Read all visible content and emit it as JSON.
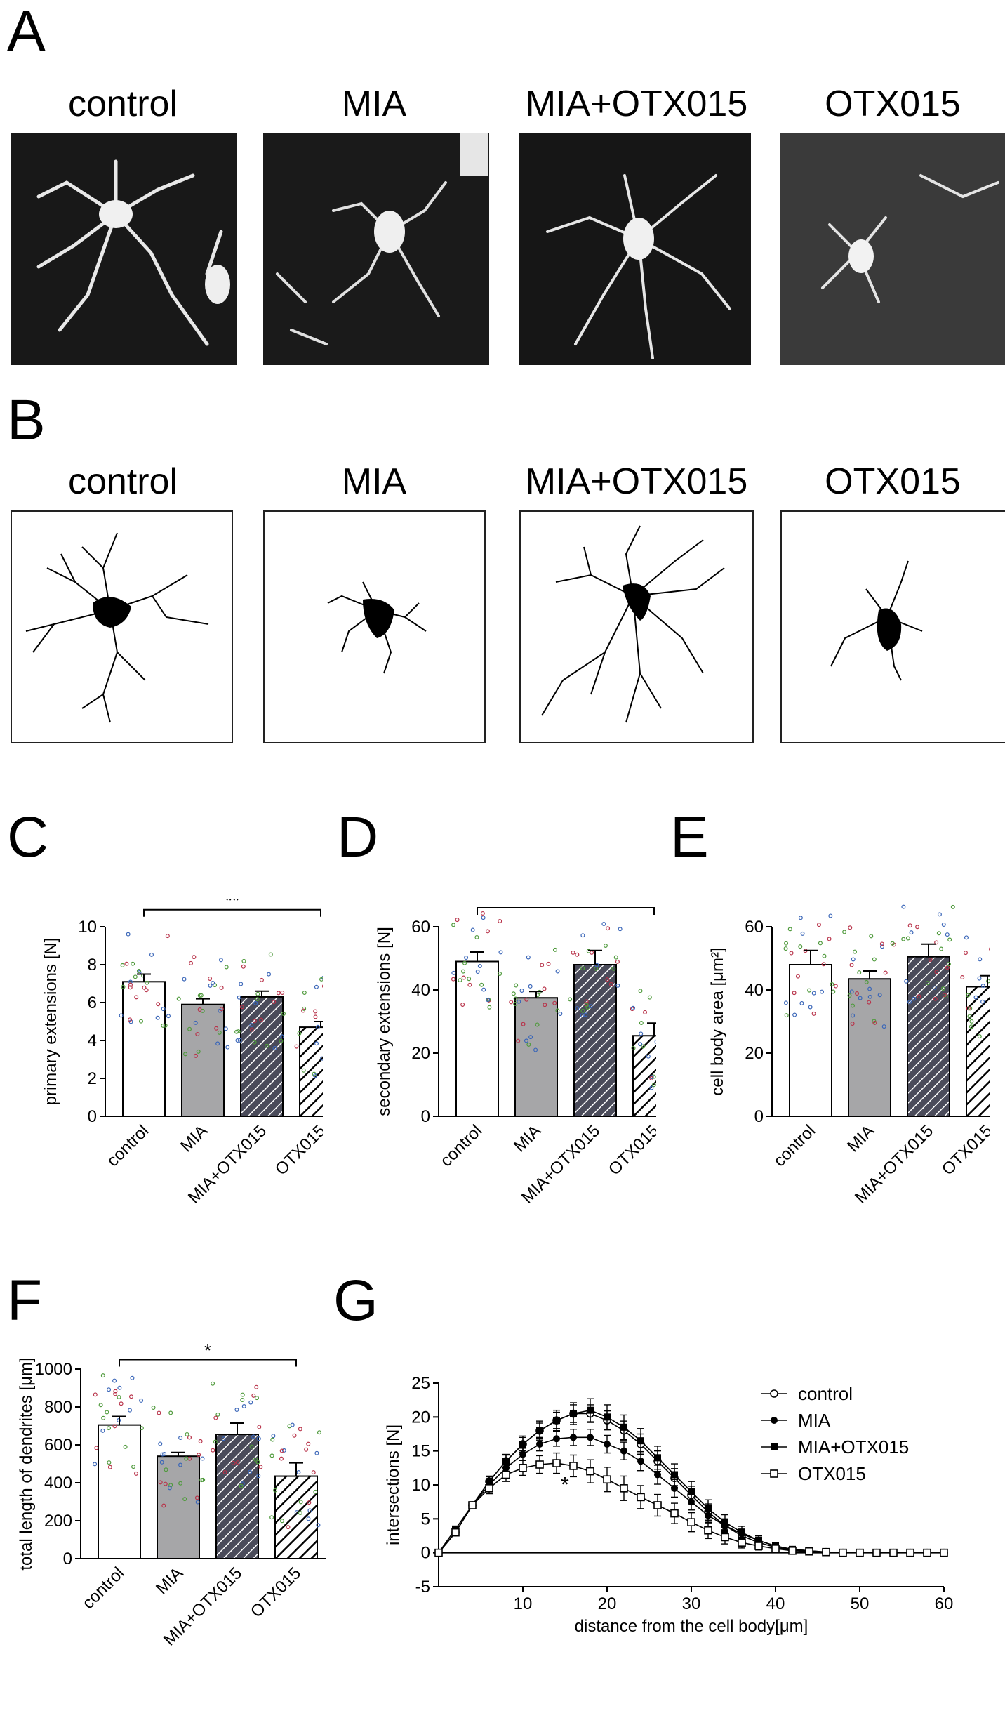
{
  "panels": {
    "A": {
      "letter": "A",
      "titles": [
        "control",
        "MIA",
        "MIA+OTX015",
        "OTX015"
      ]
    },
    "B": {
      "letter": "B",
      "titles": [
        "control",
        "MIA",
        "MIA+OTX015",
        "OTX015"
      ]
    },
    "C": {
      "letter": "C"
    },
    "D": {
      "letter": "D"
    },
    "E": {
      "letter": "E"
    },
    "F": {
      "letter": "F"
    },
    "G": {
      "letter": "G"
    }
  },
  "colors": {
    "bar_gray": "#a6a6a8",
    "bar_hatch": "#4a4b5a",
    "dot_green": "#4f9a3c",
    "dot_blue": "#3a66b8",
    "dot_red": "#b8334a"
  },
  "chart_data": [
    {
      "id": "C",
      "type": "bar",
      "categories": [
        "control",
        "MIA",
        "MIA+OTX015",
        "OTX015"
      ],
      "values": [
        7.1,
        5.9,
        6.3,
        4.7
      ],
      "errors": [
        0.4,
        0.3,
        0.3,
        0.3
      ],
      "ylabel": "primary extensions [N]",
      "ylim": [
        0,
        10
      ],
      "yticks": [
        0,
        2,
        4,
        6,
        8,
        10
      ],
      "significance": {
        "label": "**",
        "from": 0,
        "to": 3,
        "y": 10.9
      },
      "bar_styles": [
        "white",
        "gray",
        "hatch-dark",
        "hatch-white"
      ]
    },
    {
      "id": "D",
      "type": "bar",
      "categories": [
        "control",
        "MIA",
        "MIA+OTX015",
        "OTX015"
      ],
      "values": [
        49,
        37.5,
        48,
        25.5
      ],
      "errors": [
        3,
        2,
        4.5,
        4
      ],
      "ylabel": "secondary extensions [N]",
      "ylim": [
        0,
        60
      ],
      "yticks": [
        0,
        20,
        40,
        60
      ],
      "significance": {
        "label": "**",
        "from": 0,
        "to": 3,
        "y": 66
      },
      "bar_styles": [
        "white",
        "gray",
        "hatch-dark",
        "hatch-white"
      ]
    },
    {
      "id": "E",
      "type": "bar",
      "categories": [
        "control",
        "MIA",
        "MIA+OTX015",
        "OTX015"
      ],
      "values": [
        48,
        43.5,
        50.5,
        41
      ],
      "errors": [
        4.5,
        2.5,
        4,
        3.5
      ],
      "ylabel": "cell body area [μm²]",
      "ylim": [
        0,
        60
      ],
      "yticks": [
        0,
        20,
        40,
        60
      ],
      "bar_styles": [
        "white",
        "gray",
        "hatch-dark",
        "hatch-white"
      ]
    },
    {
      "id": "F",
      "type": "bar",
      "categories": [
        "control",
        "MIA",
        "MIA+OTX015",
        "OTX015"
      ],
      "values": [
        705,
        540,
        655,
        435
      ],
      "errors": [
        45,
        20,
        60,
        70
      ],
      "ylabel": "total length of dendrites [μm]",
      "ylim": [
        0,
        1000
      ],
      "yticks": [
        0,
        200,
        400,
        600,
        800,
        1000
      ],
      "significance": {
        "label": "*",
        "from": 0,
        "to": 3,
        "y": 1050
      },
      "bar_styles": [
        "white",
        "gray",
        "hatch-dark",
        "hatch-white"
      ]
    },
    {
      "id": "G",
      "type": "line",
      "xlabel": "distance from the cell body[μm]",
      "ylabel": "intersections [N]",
      "xlim": [
        0,
        60
      ],
      "ylim": [
        -5,
        25
      ],
      "xticks": [
        10,
        20,
        30,
        40,
        50,
        60
      ],
      "yticks": [
        -5,
        0,
        5,
        10,
        15,
        20,
        25
      ],
      "x": [
        0,
        2,
        4,
        6,
        8,
        10,
        12,
        14,
        16,
        18,
        20,
        22,
        24,
        26,
        28,
        30,
        32,
        34,
        36,
        38,
        40,
        42,
        44,
        46,
        48,
        50,
        52,
        54,
        56,
        58,
        60
      ],
      "series": [
        {
          "name": "control",
          "marker": "open-circle",
          "values": [
            0,
            3,
            7,
            10.5,
            13.5,
            16,
            18,
            19.5,
            20.5,
            20.5,
            19.5,
            18,
            16,
            13.5,
            11,
            8.5,
            6,
            4,
            2.5,
            1.5,
            0.8,
            0.4,
            0.2,
            0.1,
            0,
            0,
            0,
            0,
            0,
            0,
            0
          ],
          "errors": [
            0,
            0.3,
            0.5,
            0.7,
            0.9,
            1,
            1.1,
            1.2,
            1.3,
            1.3,
            1.4,
            1.4,
            1.5,
            1.5,
            1.4,
            1.3,
            1.2,
            1,
            0.8,
            0.6,
            0.4,
            0.3,
            0.2,
            0.1,
            0,
            0,
            0,
            0,
            0,
            0,
            0
          ]
        },
        {
          "name": "MIA",
          "marker": "filled-circle",
          "values": [
            0,
            3,
            7,
            10,
            12.5,
            14.5,
            16,
            16.8,
            17,
            17,
            16,
            15,
            13.5,
            11.5,
            9.5,
            7.5,
            5.5,
            4,
            2.8,
            1.8,
            1,
            0.5,
            0.3,
            0.1,
            0,
            0,
            0,
            0,
            0,
            0,
            0
          ],
          "errors": [
            0,
            0.3,
            0.5,
            0.7,
            0.8,
            0.9,
            1,
            1.1,
            1.2,
            1.2,
            1.3,
            1.3,
            1.4,
            1.4,
            1.3,
            1.2,
            1.1,
            0.9,
            0.7,
            0.5,
            0.4,
            0.3,
            0.2,
            0.1,
            0,
            0,
            0,
            0,
            0,
            0,
            0
          ]
        },
        {
          "name": "MIA+OTX015",
          "marker": "filled-square",
          "values": [
            0,
            3.5,
            7,
            10.5,
            13.5,
            16,
            18,
            19.5,
            20.5,
            21,
            20,
            18.5,
            16.5,
            14,
            11.5,
            9,
            6.5,
            4.5,
            3,
            1.8,
            1,
            0.5,
            0.3,
            0.1,
            0,
            0,
            0,
            0,
            0,
            0,
            0
          ],
          "errors": [
            0,
            0.3,
            0.5,
            0.8,
            1,
            1.2,
            1.4,
            1.5,
            1.6,
            1.7,
            1.8,
            1.8,
            1.8,
            1.7,
            1.6,
            1.5,
            1.3,
            1.1,
            0.9,
            0.7,
            0.5,
            0.3,
            0.2,
            0.1,
            0,
            0,
            0,
            0,
            0,
            0,
            0
          ]
        },
        {
          "name": "OTX015",
          "marker": "open-square",
          "values": [
            0,
            3,
            7,
            9.5,
            11.5,
            12.5,
            13,
            13.2,
            12.8,
            12,
            10.8,
            9.5,
            8.2,
            7,
            5.8,
            4.5,
            3.3,
            2.3,
            1.5,
            1,
            0.6,
            0.3,
            0.2,
            0.1,
            0,
            0,
            0,
            0,
            0,
            0,
            0
          ],
          "errors": [
            0,
            0.3,
            0.5,
            0.8,
            1,
            1.1,
            1.3,
            1.5,
            1.6,
            1.7,
            1.8,
            1.8,
            1.7,
            1.6,
            1.5,
            1.4,
            1.2,
            1,
            0.8,
            0.6,
            0.4,
            0.3,
            0.2,
            0.1,
            0,
            0,
            0,
            0,
            0,
            0,
            0
          ]
        }
      ],
      "legend": "top-right",
      "annotations": [
        {
          "label": "*",
          "x": 15,
          "y": 9
        }
      ]
    }
  ]
}
